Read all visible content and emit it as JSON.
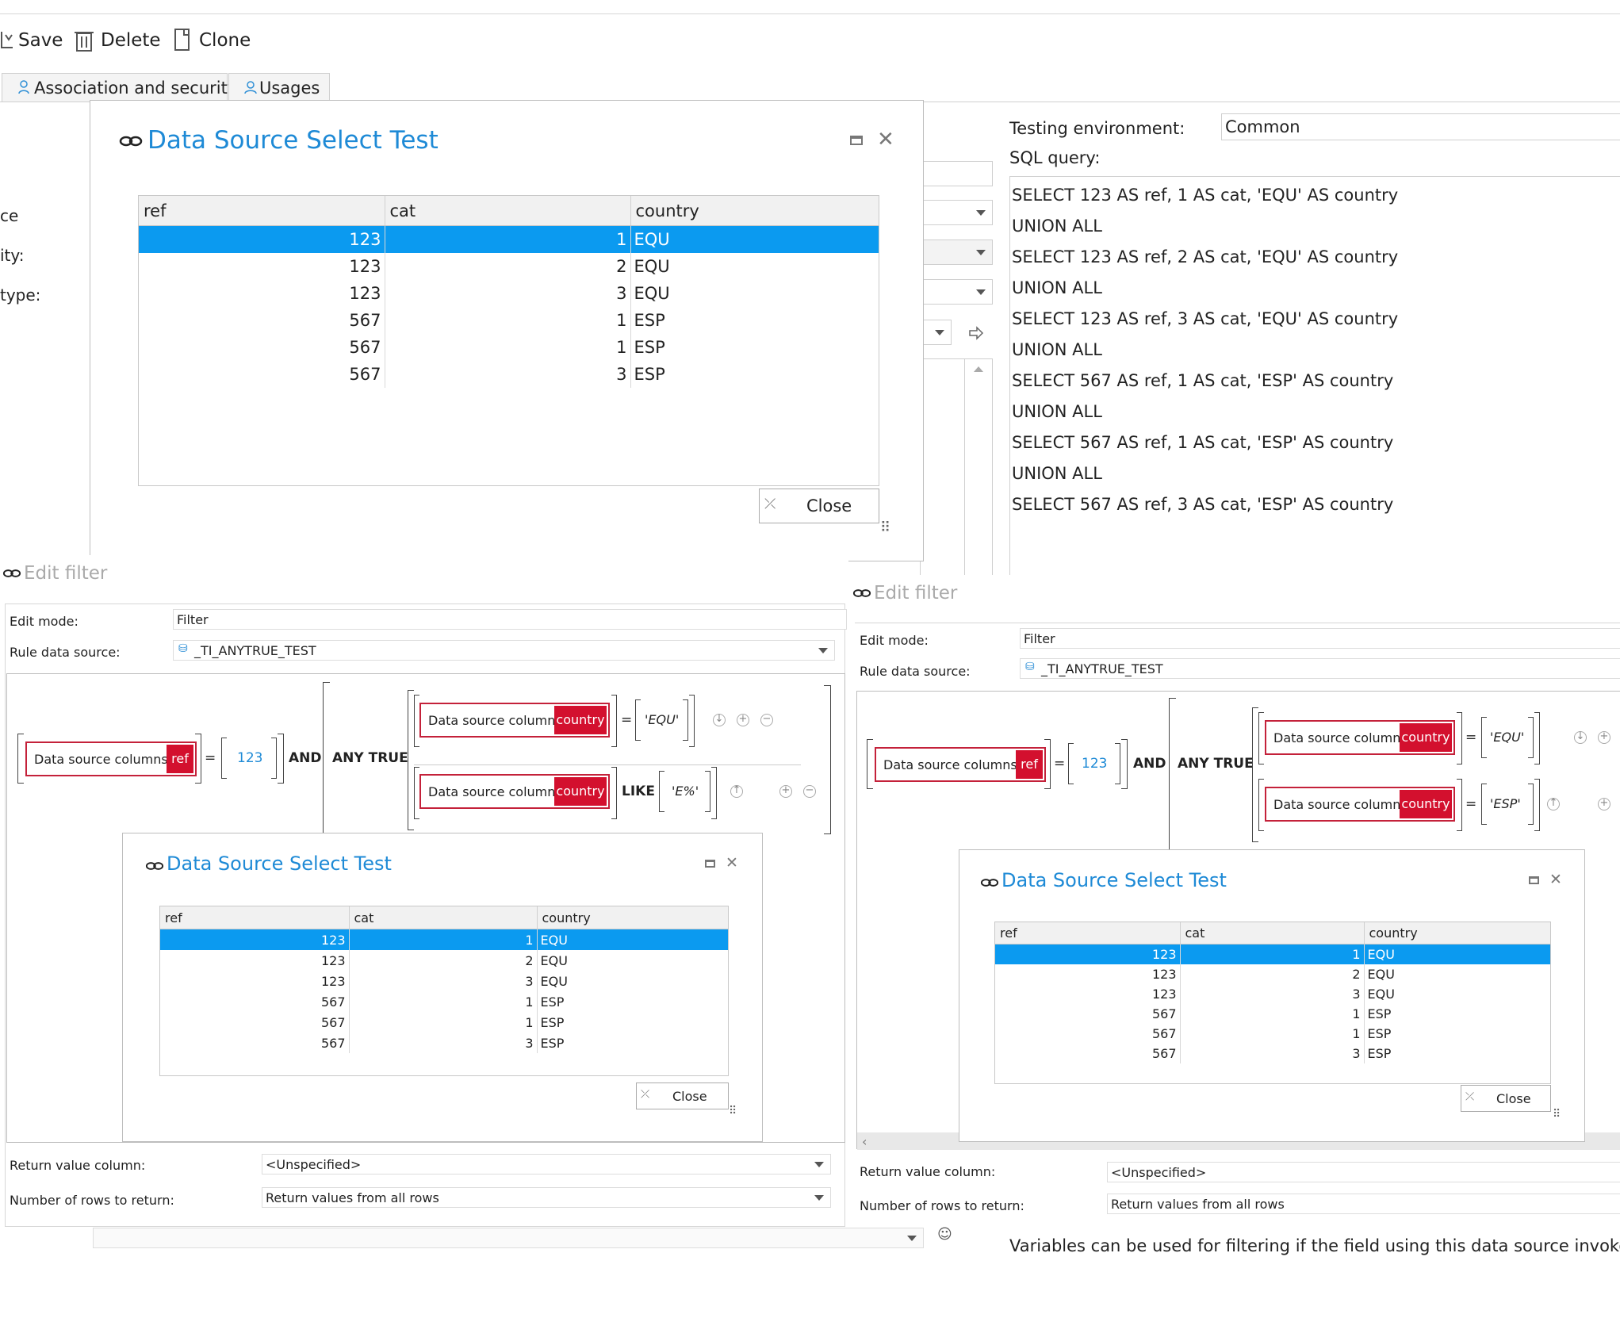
{
  "toolbar": {
    "save": "Save",
    "delete": "Delete",
    "clone": "Clone"
  },
  "tabs": {
    "association": "Association and security",
    "usages": "Usages"
  },
  "left_labels": {
    "l1": "ce",
    "l2": "ity:",
    "l3": "type:"
  },
  "testing": {
    "env_label": "Testing environment:",
    "env_value": "Common",
    "sql_label": "SQL query:",
    "sql_lines": [
      "SELECT 123 AS ref, 1 AS cat, 'EQU' AS country",
      "UNION ALL",
      "SELECT 123 AS ref, 2 AS cat, 'EQU' AS country",
      "UNION ALL",
      "SELECT 123 AS ref, 3 AS cat, 'EQU' AS country",
      "UNION ALL",
      "SELECT 567 AS ref, 1 AS cat, 'ESP' AS country",
      "UNION ALL",
      "SELECT 567 AS ref, 1 AS cat, 'ESP' AS country",
      "UNION ALL",
      "SELECT 567 AS ref, 3 AS cat, 'ESP' AS country"
    ]
  },
  "select_test": {
    "title": "Data Source Select Test",
    "close_label": "Close",
    "columns": [
      "ref",
      "cat",
      "country"
    ],
    "rows": [
      [
        "123",
        "1",
        "EQU"
      ],
      [
        "123",
        "2",
        "EQU"
      ],
      [
        "123",
        "3",
        "EQU"
      ],
      [
        "567",
        "1",
        "ESP"
      ],
      [
        "567",
        "1",
        "ESP"
      ],
      [
        "567",
        "3",
        "ESP"
      ]
    ]
  },
  "filter": {
    "title": "Edit filter",
    "edit_mode_label": "Edit mode:",
    "edit_mode_value": "Filter",
    "rule_source_label": "Rule data source:",
    "rule_source_value": "_TI_ANYTRUE_TEST",
    "chip_text": "Data source columns",
    "chip_ref": "ref",
    "chip_country": "country",
    "eq": "=",
    "value_123": "123",
    "and": "AND",
    "any_true": "ANY TRUE",
    "like": "LIKE",
    "val_equ": "'EQU'",
    "val_e": "'E%'",
    "val_esp": "'ESP'",
    "return_col_label": "Return value column:",
    "return_col_value": "<Unspecified>",
    "rows_label": "Number of rows to return:",
    "rows_value": "Return values from all rows"
  },
  "footer_note": "Variables can be used for filtering if the field using this data source invokes a post"
}
